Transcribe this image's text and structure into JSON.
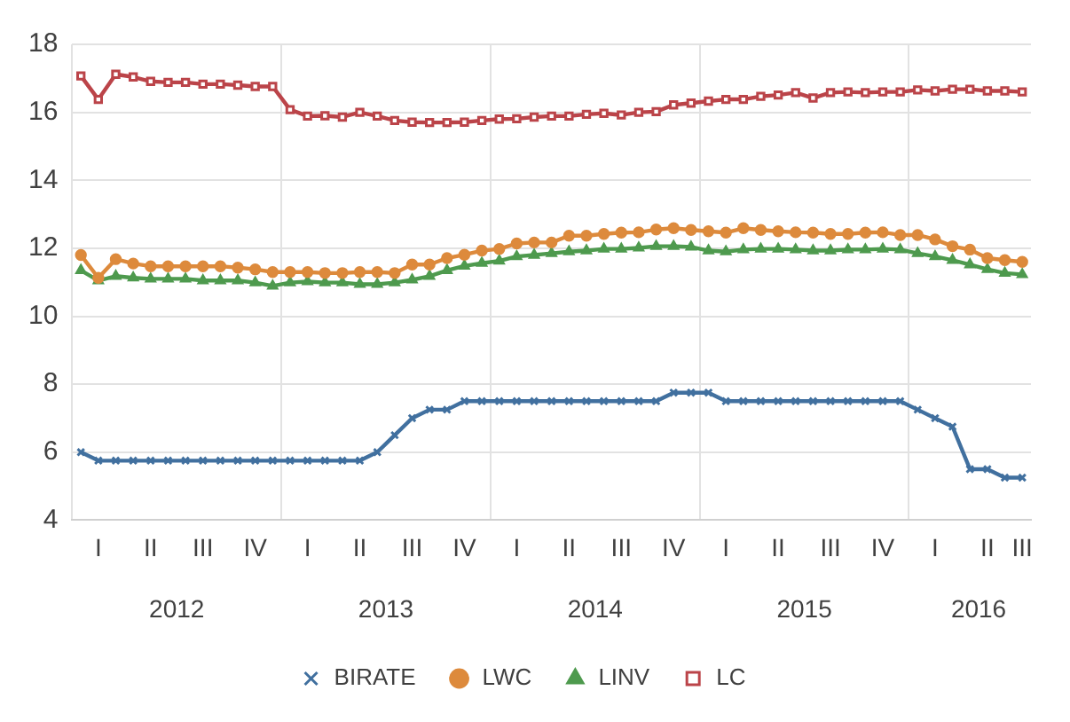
{
  "chart_data": {
    "type": "line",
    "categories": [
      null,
      "I",
      null,
      null,
      "II",
      null,
      null,
      "III",
      null,
      null,
      "IV",
      null,
      null,
      "I",
      null,
      null,
      "II",
      null,
      null,
      "III",
      null,
      null,
      "IV",
      null,
      null,
      "I",
      null,
      null,
      "II",
      null,
      null,
      "III",
      null,
      null,
      "IV",
      null,
      null,
      "I",
      null,
      null,
      "II",
      null,
      null,
      "III",
      null,
      null,
      "IV",
      null,
      null,
      "I",
      null,
      null,
      "II",
      null,
      "III"
    ],
    "annotations": [
      "2012",
      "2013",
      "2014",
      "2015",
      "2016"
    ],
    "ylim": [
      4,
      18
    ],
    "yticks": [
      4,
      6,
      8,
      10,
      12,
      14,
      16,
      18
    ],
    "grid": true,
    "legend": "bottom",
    "series": [
      {
        "name": "BIRATE",
        "color": "#41709f",
        "marker": "cross",
        "values": [
          6.0,
          5.75,
          5.75,
          5.75,
          5.75,
          5.75,
          5.75,
          5.75,
          5.75,
          5.75,
          5.75,
          5.75,
          5.75,
          5.75,
          5.75,
          5.75,
          5.75,
          6.0,
          6.5,
          7.0,
          7.25,
          7.25,
          7.5,
          7.5,
          7.5,
          7.5,
          7.5,
          7.5,
          7.5,
          7.5,
          7.5,
          7.5,
          7.5,
          7.5,
          7.75,
          7.75,
          7.75,
          7.5,
          7.5,
          7.5,
          7.5,
          7.5,
          7.5,
          7.5,
          7.5,
          7.5,
          7.5,
          7.5,
          7.25,
          7.0,
          6.75,
          5.5,
          5.5,
          5.25,
          5.25
        ]
      },
      {
        "name": "LWC",
        "color": "#dd8a3c",
        "marker": "circle",
        "values": [
          11.8,
          11.13,
          11.68,
          11.55,
          11.47,
          11.47,
          11.47,
          11.47,
          11.47,
          11.43,
          11.38,
          11.3,
          11.3,
          11.3,
          11.27,
          11.27,
          11.3,
          11.3,
          11.27,
          11.52,
          11.52,
          11.71,
          11.81,
          11.93,
          11.98,
          12.14,
          12.17,
          12.17,
          12.37,
          12.37,
          12.42,
          12.46,
          12.47,
          12.55,
          12.59,
          12.54,
          12.5,
          12.46,
          12.59,
          12.54,
          12.5,
          12.47,
          12.46,
          12.42,
          12.42,
          12.46,
          12.47,
          12.39,
          12.39,
          12.26,
          12.06,
          11.96,
          11.71,
          11.65,
          11.6
        ]
      },
      {
        "name": "LINV",
        "color": "#4e9a4e",
        "marker": "triangle",
        "values": [
          11.35,
          11.05,
          11.18,
          11.13,
          11.1,
          11.1,
          11.1,
          11.05,
          11.05,
          11.05,
          10.99,
          10.89,
          10.99,
          11.02,
          10.99,
          10.99,
          10.94,
          10.94,
          10.99,
          11.07,
          11.18,
          11.35,
          11.48,
          11.56,
          11.63,
          11.76,
          11.8,
          11.85,
          11.9,
          11.93,
          11.98,
          11.98,
          12.01,
          12.06,
          12.06,
          12.04,
          11.93,
          11.9,
          11.96,
          11.98,
          11.98,
          11.96,
          11.93,
          11.93,
          11.96,
          11.96,
          11.98,
          11.96,
          11.85,
          11.76,
          11.65,
          11.52,
          11.38,
          11.27,
          11.23
        ]
      },
      {
        "name": "LC",
        "color": "#bb4449",
        "marker": "square",
        "values": [
          17.07,
          16.38,
          17.12,
          17.04,
          16.91,
          16.88,
          16.88,
          16.83,
          16.83,
          16.8,
          16.76,
          16.76,
          16.08,
          15.89,
          15.9,
          15.86,
          16.0,
          15.89,
          15.76,
          15.71,
          15.7,
          15.7,
          15.71,
          15.76,
          15.8,
          15.81,
          15.86,
          15.89,
          15.89,
          15.94,
          15.97,
          15.92,
          16.0,
          16.02,
          16.22,
          16.27,
          16.33,
          16.38,
          16.38,
          16.47,
          16.51,
          16.58,
          16.42,
          16.58,
          16.6,
          16.58,
          16.6,
          16.6,
          16.66,
          16.63,
          16.68,
          16.68,
          16.63,
          16.63,
          16.6
        ]
      }
    ]
  }
}
